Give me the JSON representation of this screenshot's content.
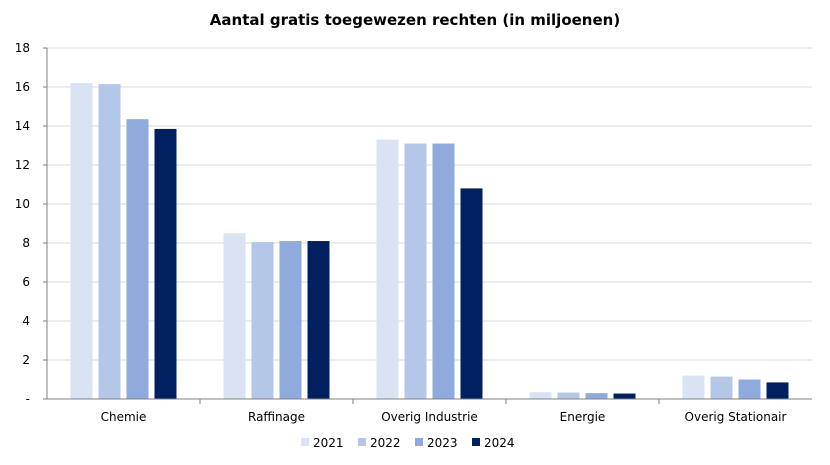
{
  "chart_data": {
    "type": "bar",
    "title": "Aantal gratis toegewezen rechten (in miljoenen)",
    "xlabel": "",
    "ylabel": "",
    "ylim": [
      0,
      18
    ],
    "yticks": [
      "-",
      "2",
      "4",
      "6",
      "8",
      "10",
      "12",
      "14",
      "16",
      "18"
    ],
    "grid": true,
    "legend_position": "bottom",
    "categories": [
      "Chemie",
      "Raffinage",
      "Overig Industrie",
      "Energie",
      "Overig Stationair"
    ],
    "series": [
      {
        "name": "2021",
        "color": "#d9e3f3",
        "values": [
          16.2,
          8.5,
          13.3,
          0.35,
          1.2
        ]
      },
      {
        "name": "2022",
        "color": "#b4c7e7",
        "values": [
          16.15,
          8.05,
          13.1,
          0.33,
          1.15
        ]
      },
      {
        "name": "2023",
        "color": "#8faadc",
        "values": [
          14.35,
          8.1,
          13.1,
          0.3,
          1.0
        ]
      },
      {
        "name": "2024",
        "color": "#002060",
        "values": [
          13.85,
          8.1,
          10.8,
          0.28,
          0.85
        ]
      }
    ]
  }
}
